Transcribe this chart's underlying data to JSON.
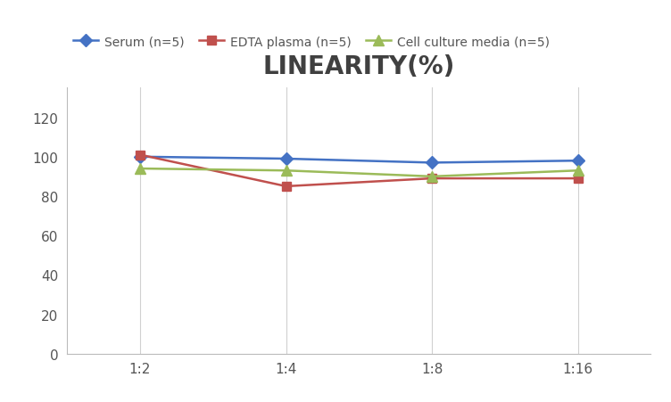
{
  "title": "LINEARITY(%)",
  "title_fontsize": 20,
  "title_fontweight": "bold",
  "title_color": "#404040",
  "x_labels": [
    "1:2",
    "1:4",
    "1:8",
    "1:16"
  ],
  "series": [
    {
      "label": "Serum (n=5)",
      "values": [
        100,
        99,
        97,
        98
      ],
      "color": "#4472C4",
      "marker": "D",
      "marker_size": 7,
      "linewidth": 1.8
    },
    {
      "label": "EDTA plasma (n=5)",
      "values": [
        101,
        85,
        89,
        89
      ],
      "color": "#C0504D",
      "marker": "s",
      "marker_size": 7,
      "linewidth": 1.8
    },
    {
      "label": "Cell culture media (n=5)",
      "values": [
        94,
        93,
        90,
        93
      ],
      "color": "#9BBB59",
      "marker": "^",
      "marker_size": 8,
      "linewidth": 1.8
    }
  ],
  "ylim": [
    0,
    135
  ],
  "yticks": [
    0,
    20,
    40,
    60,
    80,
    100,
    120
  ],
  "grid_color": "#D0D0D0",
  "background_color": "#FFFFFF",
  "legend_fontsize": 10,
  "axis_tick_fontsize": 11,
  "figsize": [
    7.52,
    4.52
  ],
  "dpi": 100
}
